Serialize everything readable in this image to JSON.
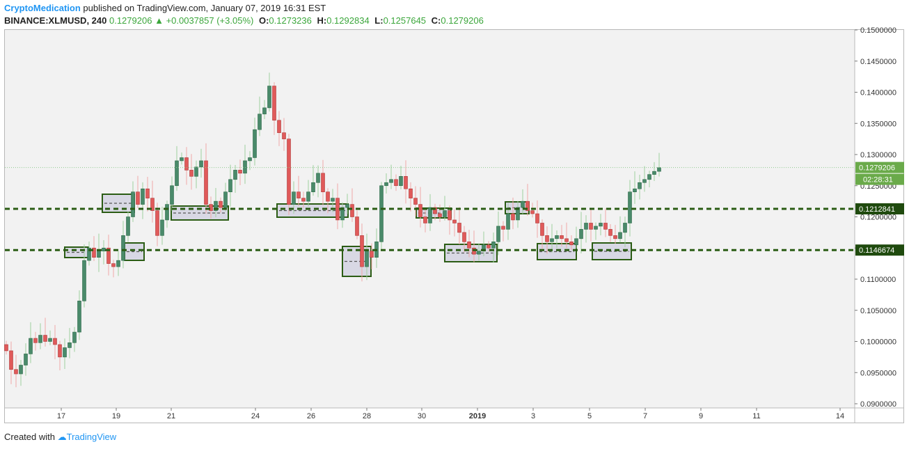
{
  "header": {
    "author": "CryptoMedication",
    "published_text": "published on TradingView.com, January 07, 2019 16:31 EST",
    "symbol": "BINANCE:XLMUSD, 240",
    "last": "0.1279206",
    "change": "+0.0037857 (+3.05%)",
    "open_label": "O:",
    "open": "0.1273236",
    "high_label": "H:",
    "high": "0.1292834",
    "low_label": "L:",
    "low": "0.1257645",
    "close_label": "C:",
    "close": "0.1279206"
  },
  "footer": {
    "created_with": "Created with",
    "brand": "TradingView"
  },
  "colors": {
    "up": "#4a8a6a",
    "down": "#e05a5a",
    "support": "#2b5c14",
    "price_tag": "#6aaa4a",
    "box_fill": "#d8d8e4"
  },
  "chart_data": {
    "type": "candlestick",
    "symbol": "BINANCE:XLMUSD",
    "interval": "240",
    "ylim": [
      0.09,
      0.15
    ],
    "y_ticks": [
      "0.1500000",
      "0.1450000",
      "0.1400000",
      "0.1350000",
      "0.1300000",
      "0.1250000",
      "0.1200000",
      "0.1150000",
      "0.1100000",
      "0.1050000",
      "0.1000000",
      "0.0950000",
      "0.0900000"
    ],
    "x_ticks": [
      "17",
      "19",
      "21",
      "24",
      "26",
      "28",
      "30",
      "2019",
      "3",
      "5",
      "7",
      "9",
      "11",
      "14"
    ],
    "current_price_label": "0.1279206",
    "countdown": "02:28:31",
    "horizontal_levels": [
      {
        "value": 0.1212841,
        "label": "0.1212841"
      },
      {
        "value": 0.1146674,
        "label": "0.1146674"
      }
    ],
    "closes": [
      0.0985,
      0.0955,
      0.0948,
      0.0962,
      0.098,
      0.1005,
      0.0998,
      0.101,
      0.1,
      0.1005,
      0.0995,
      0.0975,
      0.099,
      0.0998,
      0.1015,
      0.1065,
      0.113,
      0.115,
      0.1135,
      0.1145,
      0.115,
      0.1125,
      0.112,
      0.113,
      0.117,
      0.12,
      0.124,
      0.122,
      0.1245,
      0.123,
      0.121,
      0.117,
      0.1195,
      0.122,
      0.125,
      0.129,
      0.1295,
      0.1275,
      0.1265,
      0.128,
      0.129,
      0.122,
      0.121,
      0.1225,
      0.1215,
      0.124,
      0.126,
      0.1275,
      0.127,
      0.129,
      0.1295,
      0.134,
      0.1365,
      0.1375,
      0.141,
      0.1355,
      0.1335,
      0.1325,
      0.122,
      0.124,
      0.123,
      0.1225,
      0.124,
      0.1255,
      0.127,
      0.124,
      0.1225,
      0.123,
      0.1195,
      0.1215,
      0.122,
      0.12,
      0.117,
      0.112,
      0.1145,
      0.1135,
      0.116,
      0.125,
      0.1255,
      0.126,
      0.125,
      0.1265,
      0.1245,
      0.123,
      0.122,
      0.12,
      0.119,
      0.1215,
      0.1205,
      0.12,
      0.121,
      0.1195,
      0.119,
      0.1175,
      0.116,
      0.115,
      0.114,
      0.1145,
      0.1155,
      0.115,
      0.116,
      0.1185,
      0.118,
      0.1205,
      0.1195,
      0.1215,
      0.1225,
      0.121,
      0.1205,
      0.119,
      0.117,
      0.116,
      0.1165,
      0.117,
      0.1165,
      0.116,
      0.1155,
      0.1165,
      0.118,
      0.119,
      0.118,
      0.1185,
      0.119,
      0.118,
      0.117,
      0.1165,
      0.1175,
      0.119,
      0.124,
      0.1245,
      0.1255,
      0.126,
      0.1268,
      0.1273,
      0.1279
    ]
  }
}
